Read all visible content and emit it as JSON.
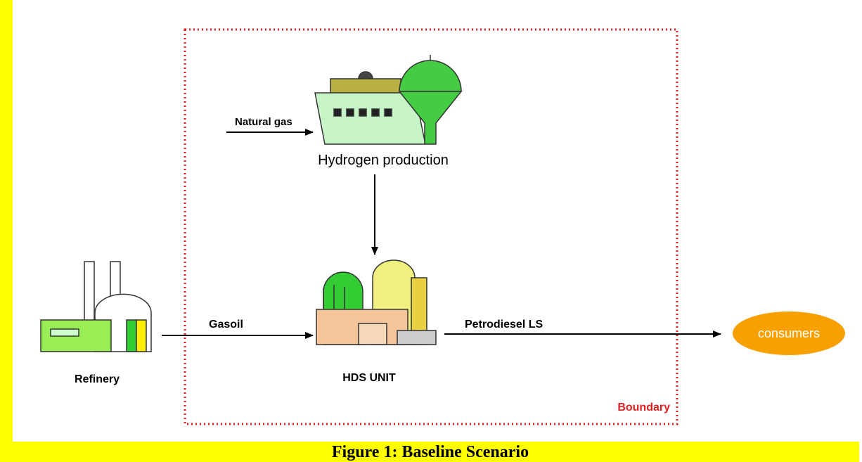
{
  "nodes": [
    {
      "label": "Hydrogen production"
    },
    {
      "label": "HDS UNIT"
    },
    {
      "label": "Refinery"
    },
    {
      "label": "consumers"
    }
  ],
  "flows": [
    {
      "label": "Natural gas"
    },
    {
      "label": "Gasoil"
    },
    {
      "label": "Petrodiesel LS"
    }
  ],
  "boundary": {
    "label": "Boundary"
  },
  "caption": "Figure 1:  Baseline Scenario"
}
